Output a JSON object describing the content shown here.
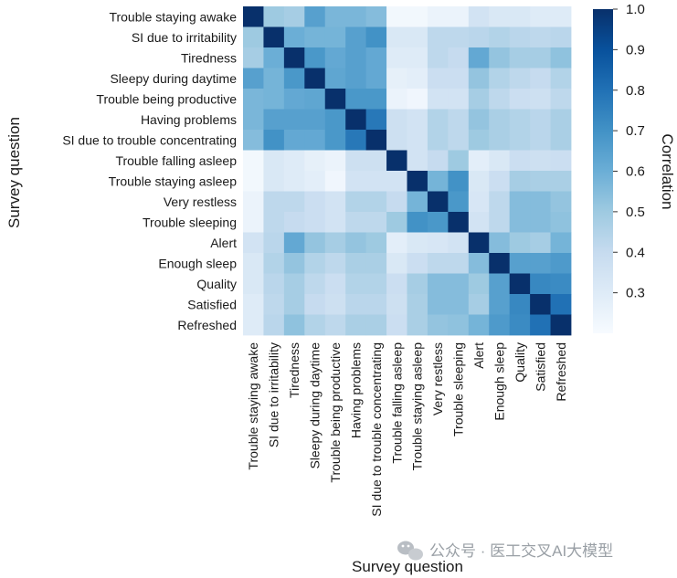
{
  "chart_data": {
    "type": "heatmap",
    "xlabel": "Survey question",
    "ylabel": "Survey question",
    "colorbar_label": "Correlation",
    "colorbar_ticks": [
      1.0,
      0.9,
      0.8,
      0.7,
      0.6,
      0.5,
      0.4,
      0.3
    ],
    "colorbar_tick_labels": [
      "1.0",
      "0.9",
      "0.8",
      "0.7",
      "0.6",
      "0.5",
      "0.4",
      "0.3"
    ],
    "value_range": [
      0.2,
      1.0
    ],
    "grid": false,
    "legend": "colorbar-right",
    "rows": [
      "Trouble staying awake",
      "SI due to irritability",
      "Tiredness",
      "Sleepy during daytime",
      "Trouble being productive",
      "Having problems",
      "SI due to trouble concentrating",
      "Trouble falling asleep",
      "Trouble staying asleep",
      "Very restless",
      "Trouble sleeping",
      "Alert",
      "Enough sleep",
      "Quality",
      "Satisfied",
      "Refreshed"
    ],
    "columns": [
      "Trouble staying awake",
      "SI due to irritability",
      "Tiredness",
      "Sleepy during daytime",
      "Trouble being productive",
      "Having problems",
      "SI due to trouble concentrating",
      "Trouble falling asleep",
      "Trouble staying asleep",
      "Very restless",
      "Trouble sleeping",
      "Alert",
      "Enough sleep",
      "Quality",
      "Satisfied",
      "Refreshed"
    ],
    "values": [
      [
        1.0,
        0.5,
        0.48,
        0.65,
        0.57,
        0.57,
        0.55,
        0.22,
        0.22,
        0.25,
        0.25,
        0.35,
        0.32,
        0.32,
        0.3,
        0.3
      ],
      [
        0.5,
        1.0,
        0.6,
        0.58,
        0.58,
        0.65,
        0.7,
        0.32,
        0.32,
        0.42,
        0.42,
        0.43,
        0.45,
        0.43,
        0.42,
        0.43
      ],
      [
        0.48,
        0.6,
        1.0,
        0.68,
        0.62,
        0.65,
        0.62,
        0.3,
        0.3,
        0.42,
        0.4,
        0.62,
        0.52,
        0.48,
        0.48,
        0.53
      ],
      [
        0.65,
        0.58,
        0.68,
        1.0,
        0.63,
        0.65,
        0.62,
        0.27,
        0.28,
        0.38,
        0.38,
        0.52,
        0.45,
        0.42,
        0.4,
        0.45
      ],
      [
        0.57,
        0.58,
        0.62,
        0.63,
        1.0,
        0.68,
        0.68,
        0.25,
        0.23,
        0.35,
        0.35,
        0.48,
        0.42,
        0.38,
        0.37,
        0.42
      ],
      [
        0.57,
        0.65,
        0.65,
        0.65,
        0.68,
        1.0,
        0.78,
        0.37,
        0.35,
        0.45,
        0.42,
        0.52,
        0.47,
        0.45,
        0.43,
        0.47
      ],
      [
        0.55,
        0.7,
        0.62,
        0.62,
        0.68,
        0.78,
        1.0,
        0.37,
        0.35,
        0.45,
        0.42,
        0.5,
        0.47,
        0.45,
        0.43,
        0.47
      ],
      [
        0.22,
        0.32,
        0.3,
        0.27,
        0.25,
        0.37,
        0.37,
        1.0,
        0.35,
        0.4,
        0.5,
        0.28,
        0.32,
        0.38,
        0.37,
        0.38
      ],
      [
        0.22,
        0.32,
        0.3,
        0.28,
        0.23,
        0.35,
        0.35,
        0.35,
        1.0,
        0.58,
        0.7,
        0.32,
        0.38,
        0.48,
        0.47,
        0.47
      ],
      [
        0.25,
        0.42,
        0.42,
        0.38,
        0.35,
        0.45,
        0.45,
        0.4,
        0.58,
        1.0,
        0.68,
        0.33,
        0.42,
        0.55,
        0.55,
        0.52
      ],
      [
        0.25,
        0.42,
        0.4,
        0.38,
        0.35,
        0.42,
        0.42,
        0.5,
        0.7,
        0.68,
        1.0,
        0.35,
        0.42,
        0.55,
        0.55,
        0.53
      ],
      [
        0.35,
        0.43,
        0.62,
        0.52,
        0.48,
        0.52,
        0.5,
        0.28,
        0.32,
        0.33,
        0.35,
        1.0,
        0.55,
        0.5,
        0.48,
        0.58
      ],
      [
        0.32,
        0.45,
        0.52,
        0.45,
        0.42,
        0.47,
        0.47,
        0.32,
        0.38,
        0.42,
        0.42,
        0.55,
        1.0,
        0.65,
        0.65,
        0.67
      ],
      [
        0.32,
        0.43,
        0.48,
        0.42,
        0.38,
        0.45,
        0.45,
        0.38,
        0.48,
        0.55,
        0.55,
        0.5,
        0.65,
        1.0,
        0.73,
        0.72
      ],
      [
        0.3,
        0.42,
        0.48,
        0.4,
        0.37,
        0.43,
        0.43,
        0.37,
        0.47,
        0.55,
        0.55,
        0.48,
        0.65,
        0.73,
        1.0,
        0.8
      ],
      [
        0.3,
        0.43,
        0.53,
        0.45,
        0.42,
        0.47,
        0.47,
        0.38,
        0.47,
        0.52,
        0.53,
        0.58,
        0.67,
        0.72,
        0.8,
        1.0
      ]
    ]
  },
  "watermark": {
    "text": "公众号 · 医工交叉AI大模型",
    "icon": "wechat-icon"
  }
}
